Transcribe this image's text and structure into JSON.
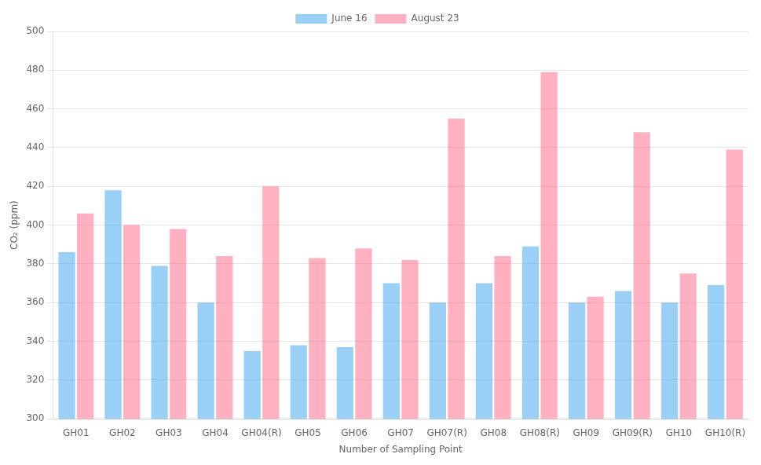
{
  "chart_data": {
    "type": "bar",
    "categories": [
      "GH01",
      "GH02",
      "GH03",
      "GH04",
      "GH04(R)",
      "GH05",
      "GH06",
      "GH07",
      "GH07(R)",
      "GH08",
      "GH08(R)",
      "GH09",
      "GH09(R)",
      "GH10",
      "GH10(R)"
    ],
    "series": [
      {
        "name": "June 16",
        "values": [
          386,
          418,
          379,
          360,
          335,
          338,
          337,
          370,
          360,
          370,
          389,
          360,
          366,
          360,
          369
        ]
      },
      {
        "name": "August 23",
        "values": [
          406,
          400,
          398,
          384,
          420,
          383,
          388,
          382,
          455,
          384,
          479,
          363,
          448,
          375,
          439
        ]
      }
    ],
    "xlabel": "Number of Sampling Point",
    "ylabel": "CO₂ (ppm)",
    "ylim": [
      300,
      500
    ],
    "yticks": [
      300,
      320,
      340,
      360,
      380,
      400,
      420,
      440,
      460,
      480,
      500
    ],
    "grid": true,
    "legend": "top"
  }
}
